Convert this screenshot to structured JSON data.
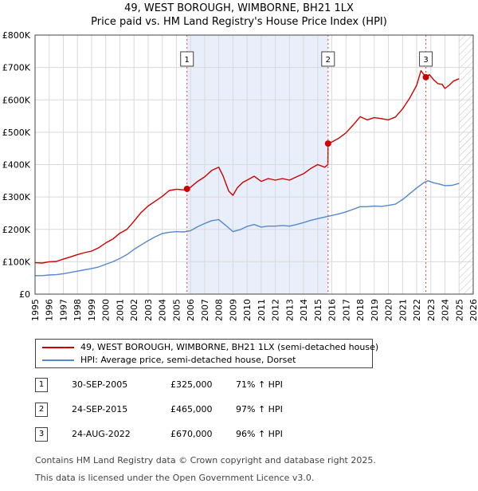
{
  "title": {
    "line1": "49, WEST BOROUGH, WIMBORNE, BH21 1LX",
    "line2": "Price paid vs. HM Land Registry's House Price Index (HPI)"
  },
  "chart_data": {
    "type": "line",
    "title": "49, WEST BOROUGH, WIMBORNE, BH21 1LX — Price paid vs. HM Land Registry's House Price Index (HPI)",
    "xlim": [
      1995,
      2026
    ],
    "ylim": [
      0,
      800000
    ],
    "x_ticks": [
      1995,
      1996,
      1997,
      1998,
      1999,
      2000,
      2001,
      2002,
      2003,
      2004,
      2005,
      2006,
      2007,
      2008,
      2009,
      2010,
      2011,
      2012,
      2013,
      2014,
      2015,
      2016,
      2017,
      2018,
      2019,
      2020,
      2021,
      2022,
      2023,
      2024,
      2025,
      2026
    ],
    "y_ticks": [
      0,
      100000,
      200000,
      300000,
      400000,
      500000,
      600000,
      700000,
      800000
    ],
    "y_tick_labels": [
      "£0",
      "£100K",
      "£200K",
      "£300K",
      "£400K",
      "£500K",
      "£600K",
      "£700K",
      "£800K"
    ],
    "grid": true,
    "future_hatch_from": 2025.0,
    "ownership_shaded": [
      2005.75,
      2015.73
    ],
    "sale_markers": [
      {
        "label": "1",
        "x": 2005.75,
        "y": 325000
      },
      {
        "label": "2",
        "x": 2015.73,
        "y": 465000
      },
      {
        "label": "3",
        "x": 2022.65,
        "y": 670000
      }
    ],
    "series": [
      {
        "name": "49, WEST BOROUGH, WIMBORNE, BH21 1LX (semi-detached house)",
        "color": "#cc0000",
        "x": [
          1995.0,
          1995.5,
          1996.0,
          1996.5,
          1997.0,
          1997.5,
          1998.0,
          1998.5,
          1999.0,
          1999.5,
          2000.0,
          2000.5,
          2001.0,
          2001.5,
          2002.0,
          2002.5,
          2003.0,
          2003.5,
          2004.0,
          2004.5,
          2005.0,
          2005.5,
          2005.75,
          2006.0,
          2006.5,
          2007.0,
          2007.5,
          2008.0,
          2008.3,
          2008.7,
          2009.0,
          2009.3,
          2009.7,
          2010.0,
          2010.5,
          2011.0,
          2011.5,
          2012.0,
          2012.5,
          2013.0,
          2013.5,
          2014.0,
          2014.5,
          2015.0,
          2015.5,
          2015.72,
          2015.73,
          2016.0,
          2016.5,
          2017.0,
          2017.5,
          2018.0,
          2018.5,
          2019.0,
          2019.5,
          2020.0,
          2020.5,
          2021.0,
          2021.5,
          2022.0,
          2022.3,
          2022.65,
          2022.9,
          2023.2,
          2023.5,
          2023.8,
          2024.0,
          2024.3,
          2024.6,
          2025.0
        ],
        "values": [
          97000,
          96000,
          100000,
          101000,
          108000,
          115000,
          122000,
          128000,
          133000,
          143000,
          158000,
          170000,
          188000,
          200000,
          225000,
          252000,
          272000,
          287000,
          302000,
          320000,
          324000,
          322000,
          325000,
          330000,
          348000,
          362000,
          382000,
          392000,
          365000,
          318000,
          305000,
          328000,
          345000,
          352000,
          364000,
          348000,
          357000,
          352000,
          357000,
          352000,
          362000,
          372000,
          388000,
          400000,
          392000,
          400000,
          465000,
          470000,
          482000,
          498000,
          522000,
          548000,
          538000,
          545000,
          542000,
          538000,
          547000,
          572000,
          605000,
          645000,
          690000,
          670000,
          678000,
          662000,
          650000,
          648000,
          635000,
          645000,
          658000,
          665000
        ]
      },
      {
        "name": "HPI: Average price, semi-detached house, Dorset",
        "color": "#5588cc",
        "x": [
          1995.0,
          1995.5,
          1996.0,
          1996.5,
          1997.0,
          1997.5,
          1998.0,
          1998.5,
          1999.0,
          1999.5,
          2000.0,
          2000.5,
          2001.0,
          2001.5,
          2002.0,
          2002.5,
          2003.0,
          2003.5,
          2004.0,
          2004.5,
          2005.0,
          2005.5,
          2006.0,
          2006.5,
          2007.0,
          2007.5,
          2008.0,
          2008.5,
          2009.0,
          2009.5,
          2010.0,
          2010.5,
          2011.0,
          2011.5,
          2012.0,
          2012.5,
          2013.0,
          2013.5,
          2014.0,
          2014.5,
          2015.0,
          2015.5,
          2016.0,
          2016.5,
          2017.0,
          2017.5,
          2018.0,
          2018.5,
          2019.0,
          2019.5,
          2020.0,
          2020.5,
          2021.0,
          2021.5,
          2022.0,
          2022.5,
          2022.8,
          2023.2,
          2023.6,
          2024.0,
          2024.5,
          2025.0
        ],
        "values": [
          57000,
          57000,
          59000,
          60000,
          63000,
          67000,
          71000,
          75000,
          79000,
          84000,
          92000,
          100000,
          110000,
          122000,
          138000,
          152000,
          165000,
          177000,
          187000,
          191000,
          193000,
          192000,
          196000,
          208000,
          218000,
          227000,
          230000,
          212000,
          193000,
          199000,
          209000,
          215000,
          207000,
          210000,
          210000,
          212000,
          210000,
          215000,
          221000,
          228000,
          233000,
          238000,
          243000,
          248000,
          254000,
          262000,
          270000,
          270000,
          272000,
          271000,
          274000,
          278000,
          292000,
          310000,
          328000,
          344000,
          350000,
          344000,
          340000,
          335000,
          336000,
          342000
        ]
      }
    ]
  },
  "legend": {
    "property": "49, WEST BOROUGH, WIMBORNE, BH21 1LX (semi-detached house)",
    "hpi": "HPI: Average price, semi-detached house, Dorset"
  },
  "sales": [
    {
      "num": "1",
      "date": "30-SEP-2005",
      "price": "£325,000",
      "hpi": "71% ↑ HPI"
    },
    {
      "num": "2",
      "date": "24-SEP-2015",
      "price": "£465,000",
      "hpi": "97% ↑ HPI"
    },
    {
      "num": "3",
      "date": "24-AUG-2022",
      "price": "£670,000",
      "hpi": "96% ↑ HPI"
    }
  ],
  "footer": {
    "line1": "Contains HM Land Registry data © Crown copyright and database right 2025.",
    "line2": "This data is licensed under the Open Government Licence v3.0."
  },
  "colors": {
    "property_line": "#cc0000",
    "hpi_line": "#5588cc",
    "shade": "#e8eefa",
    "marker_dash": "#dd4444"
  }
}
